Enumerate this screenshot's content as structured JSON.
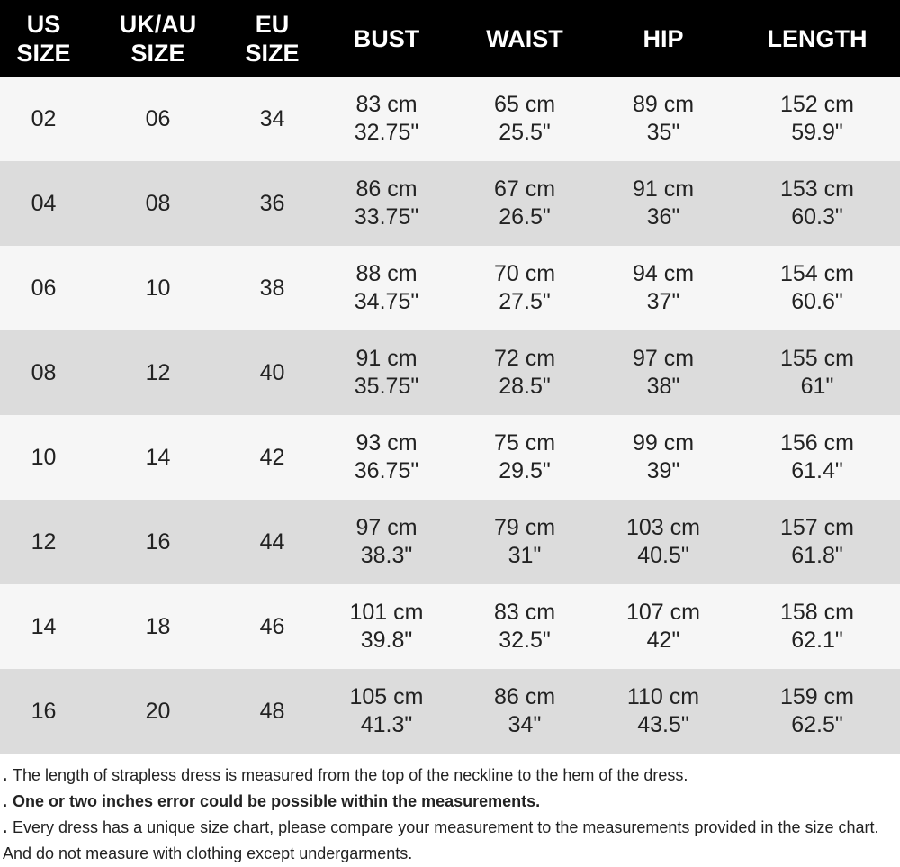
{
  "headers": [
    "US\nSIZE",
    "UK/AU\nSIZE",
    "EU\nSIZE",
    "BUST",
    "WAIST",
    "HIP",
    "LENGTH"
  ],
  "rows": [
    {
      "us": "02",
      "uk": "06",
      "eu": "34",
      "bust": [
        "83 cm",
        "32.75\""
      ],
      "waist": [
        "65 cm",
        "25.5\""
      ],
      "hip": [
        "89 cm",
        "35\""
      ],
      "length": [
        "152 cm",
        "59.9\""
      ]
    },
    {
      "us": "04",
      "uk": "08",
      "eu": "36",
      "bust": [
        "86 cm",
        "33.75\""
      ],
      "waist": [
        "67 cm",
        "26.5\""
      ],
      "hip": [
        "91 cm",
        "36\""
      ],
      "length": [
        "153 cm",
        "60.3\""
      ]
    },
    {
      "us": "06",
      "uk": "10",
      "eu": "38",
      "bust": [
        "88 cm",
        "34.75\""
      ],
      "waist": [
        "70 cm",
        "27.5\""
      ],
      "hip": [
        "94 cm",
        "37\""
      ],
      "length": [
        "154 cm",
        "60.6\""
      ]
    },
    {
      "us": "08",
      "uk": "12",
      "eu": "40",
      "bust": [
        "91 cm",
        "35.75\""
      ],
      "waist": [
        "72 cm",
        "28.5\""
      ],
      "hip": [
        "97 cm",
        "38\""
      ],
      "length": [
        "155 cm",
        "61\""
      ]
    },
    {
      "us": "10",
      "uk": "14",
      "eu": "42",
      "bust": [
        "93 cm",
        "36.75\""
      ],
      "waist": [
        "75 cm",
        "29.5\""
      ],
      "hip": [
        "99 cm",
        "39\""
      ],
      "length": [
        "156 cm",
        "61.4\""
      ]
    },
    {
      "us": "12",
      "uk": "16",
      "eu": "44",
      "bust": [
        "97 cm",
        "38.3\""
      ],
      "waist": [
        "79 cm",
        "31\""
      ],
      "hip": [
        "103 cm",
        "40.5\""
      ],
      "length": [
        "157 cm",
        "61.8\""
      ]
    },
    {
      "us": "14",
      "uk": "18",
      "eu": "46",
      "bust": [
        "101 cm",
        "39.8\""
      ],
      "waist": [
        "83 cm",
        "32.5\""
      ],
      "hip": [
        "107 cm",
        "42\""
      ],
      "length": [
        "158 cm",
        "62.1\""
      ]
    },
    {
      "us": "16",
      "uk": "20",
      "eu": "48",
      "bust": [
        "105 cm",
        "41.3\""
      ],
      "waist": [
        "86 cm",
        "34\""
      ],
      "hip": [
        "110 cm",
        "43.5\""
      ],
      "length": [
        "159 cm",
        "62.5\""
      ]
    }
  ],
  "notes": [
    {
      "text": "The length of strapless dress is measured from the top of the neckline to the hem of the dress.",
      "bold": false
    },
    {
      "text": "One or two inches error could be possible within the measurements.",
      "bold": true
    },
    {
      "text": "Every dress has a unique size chart, please compare your measurement to the measurements provided in the size chart. And do not measure with clothing except undergarments.",
      "bold": false
    }
  ],
  "bullet": ".",
  "colors": {
    "header_bg": "#000000",
    "header_text": "#ffffff",
    "row_light": "#f6f6f6",
    "row_dark": "#dcdcdc"
  }
}
